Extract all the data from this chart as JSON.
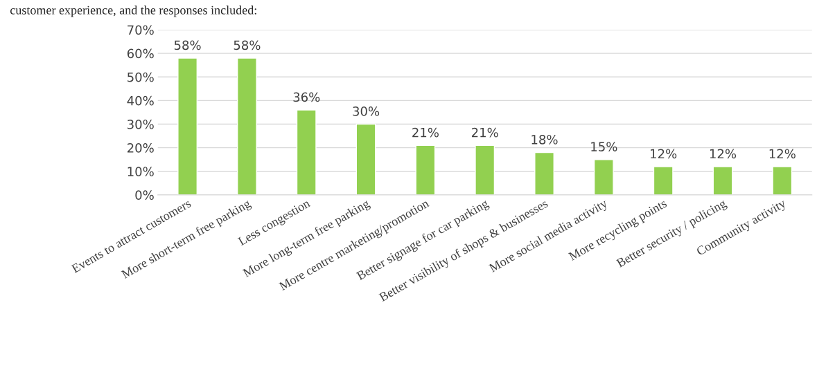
{
  "chart_data": {
    "type": "bar",
    "categories": [
      "Events to attract customers",
      "More short-term free parking",
      "Less congestion",
      "More long-term free parking",
      "More centre marketing/promotion",
      "Better signage for car parking",
      "Better visibility of shops & businesses",
      "More social media activity",
      "More recycling points",
      "Better security / policing",
      "Community activity"
    ],
    "values": [
      58,
      58,
      36,
      30,
      21,
      21,
      18,
      15,
      12,
      12,
      12
    ],
    "value_labels": [
      "58%",
      "58%",
      "36%",
      "30%",
      "21%",
      "21%",
      "18%",
      "15%",
      "12%",
      "12%",
      "12%"
    ],
    "color": "#92d050",
    "ylim": [
      0,
      70
    ],
    "yticks": [
      {
        "value": 0,
        "label": "0%"
      },
      {
        "value": 10,
        "label": "10%"
      },
      {
        "value": 20,
        "label": "20%"
      },
      {
        "value": 30,
        "label": "30%"
      },
      {
        "value": 40,
        "label": "40%"
      },
      {
        "value": 50,
        "label": "50%"
      },
      {
        "value": 60,
        "label": "60%"
      },
      {
        "value": 70,
        "label": "70%"
      }
    ],
    "grid": "y",
    "legend": false,
    "annotations": [
      "customer experience, and the responses included:"
    ]
  }
}
